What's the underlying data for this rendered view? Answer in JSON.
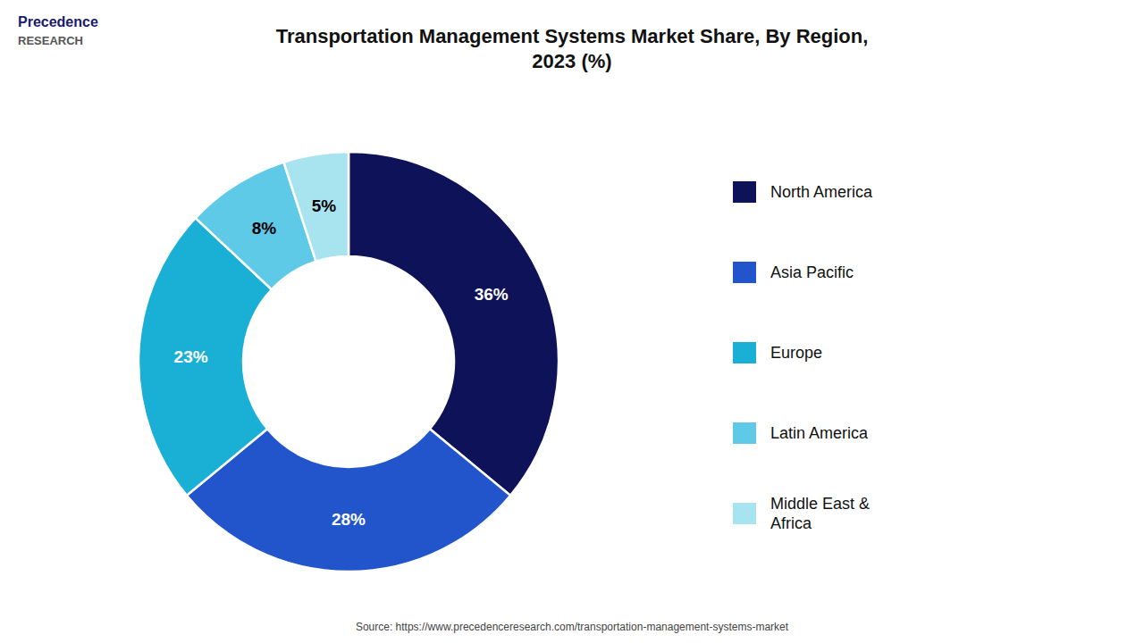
{
  "chart_data": {
    "type": "pie",
    "title": "Transportation Management Systems Market Share, By Region,\n2023 (%)",
    "categories": [
      "North America",
      "Asia Pacific",
      "Europe",
      "Latin America",
      "Middle East &\nAfrica"
    ],
    "values": [
      36,
      28,
      23,
      8,
      5
    ],
    "value_labels": [
      "36%",
      "28%",
      "23%",
      "8%",
      "5%"
    ],
    "colors": [
      "#0d1259",
      "#2255cc",
      "#1ab0d5",
      "#5ecae8",
      "#a8e4f0"
    ],
    "data_labels": true,
    "legend": "right",
    "annotations": [
      "Precedence",
      "RESEARCH"
    ],
    "source": "Source: https://www.precedenceresearch.com/transportation-management-systems-market"
  }
}
